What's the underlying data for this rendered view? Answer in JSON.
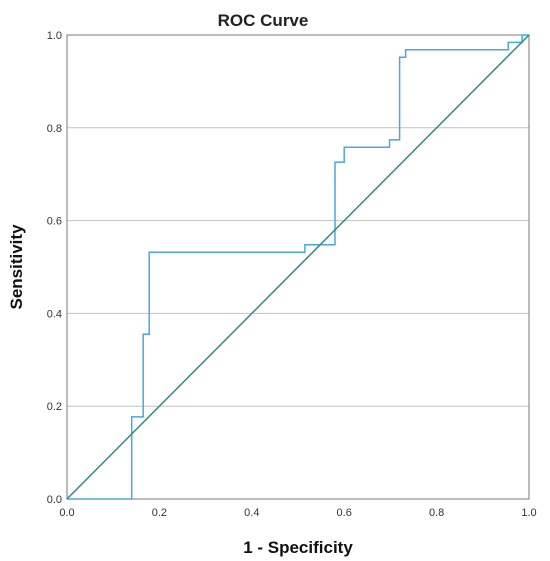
{
  "chart_data": {
    "type": "line",
    "title": "ROC Curve",
    "xlabel": "1 - Specificity",
    "ylabel": "Sensitivity",
    "xlim": [
      0,
      1
    ],
    "ylim": [
      0,
      1
    ],
    "x_ticks": [
      "0.0",
      "0.2",
      "0.4",
      "0.6",
      "0.8",
      "1.0"
    ],
    "y_ticks": [
      "0.0",
      "0.2",
      "0.4",
      "0.6",
      "0.8",
      "1.0"
    ],
    "grid": "horizontal",
    "series": [
      {
        "style": "step",
        "color": "#4aa8dc",
        "x": [
          0.0,
          0.14,
          0.14,
          0.165,
          0.165,
          0.178,
          0.178,
          0.515,
          0.515,
          0.58,
          0.58,
          0.6,
          0.6,
          0.698,
          0.698,
          0.72,
          0.72,
          0.733,
          0.733,
          0.955,
          0.955,
          0.985,
          0.985,
          1.0
        ],
        "y": [
          0.0,
          0.0,
          0.177,
          0.177,
          0.355,
          0.355,
          0.532,
          0.532,
          0.548,
          0.548,
          0.726,
          0.726,
          0.758,
          0.758,
          0.774,
          0.774,
          0.952,
          0.952,
          0.968,
          0.968,
          0.984,
          0.984,
          1.0,
          1.0
        ]
      },
      {
        "style": "reference",
        "color": "#2e8b8b",
        "x": [
          0.0,
          1.0
        ],
        "y": [
          0.0,
          1.0
        ]
      }
    ]
  }
}
